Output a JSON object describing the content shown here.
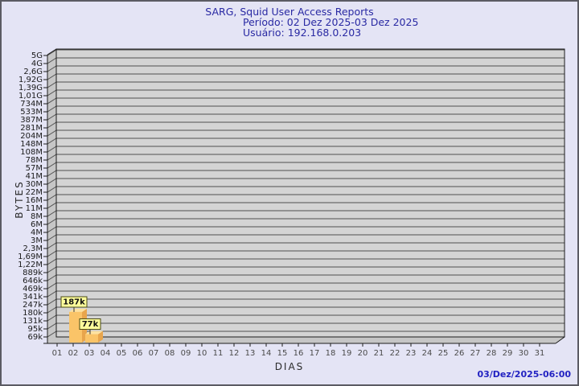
{
  "window": {
    "background_color": "#e4e4f5",
    "border_color": "#5b5b63"
  },
  "footer": {
    "timestamp": "03/Dez/2025-06:00"
  },
  "chart_data": {
    "type": "bar",
    "title": "SARG, Squid User Access Reports",
    "period_line": "Período: 02 Dez 2025-03 Dez 2025",
    "user_line": "Usuário: 192.168.0.203",
    "xlabel": "DIAS",
    "ylabel": "BYTES",
    "y_scale": "log",
    "y_axis_top_value": 5000000000,
    "y_axis_bottom_value": 69000,
    "y_tick_labels": [
      "5G",
      "4G",
      "2,6G",
      "1,92G",
      "1,39G",
      "1,01G",
      "734M",
      "533M",
      "387M",
      "281M",
      "204M",
      "148M",
      "108M",
      "78M",
      "57M",
      "41M",
      "30M",
      "22M",
      "16M",
      "11M",
      "8M",
      "6M",
      "4M",
      "3M",
      "2,3M",
      "1,69M",
      "1,22M",
      "889k",
      "646k",
      "469k",
      "341k",
      "247k",
      "180k",
      "131k",
      "95k",
      "69k"
    ],
    "x_tick_labels": [
      "01",
      "02",
      "03",
      "04",
      "05",
      "06",
      "07",
      "08",
      "09",
      "10",
      "11",
      "12",
      "13",
      "14",
      "15",
      "16",
      "17",
      "18",
      "19",
      "20",
      "21",
      "22",
      "23",
      "24",
      "25",
      "26",
      "27",
      "28",
      "29",
      "30",
      "31"
    ],
    "bars": [
      {
        "x": "02",
        "value_label": "187k",
        "value_bytes": 187000
      },
      {
        "x": "03",
        "value_label": "77k",
        "value_bytes": 77000
      }
    ],
    "legend": "none",
    "grid": "horizontal",
    "colors": {
      "plane": "#d4d4d4",
      "wall": "#c6c6c6",
      "grid": "#4f4f4f",
      "frame": "#1c1c1c",
      "y_tick_text": "#1a1a1a",
      "x_tick_text": "#4a4a4a",
      "bar_front": "#fac468",
      "bar_side": "#e8a54c",
      "bar_top": "#fee2a0",
      "value_box_bg": "#ffff9c",
      "value_box_border": "#4a4a14",
      "value_box_text": "#111111",
      "connector": "#333333"
    }
  }
}
